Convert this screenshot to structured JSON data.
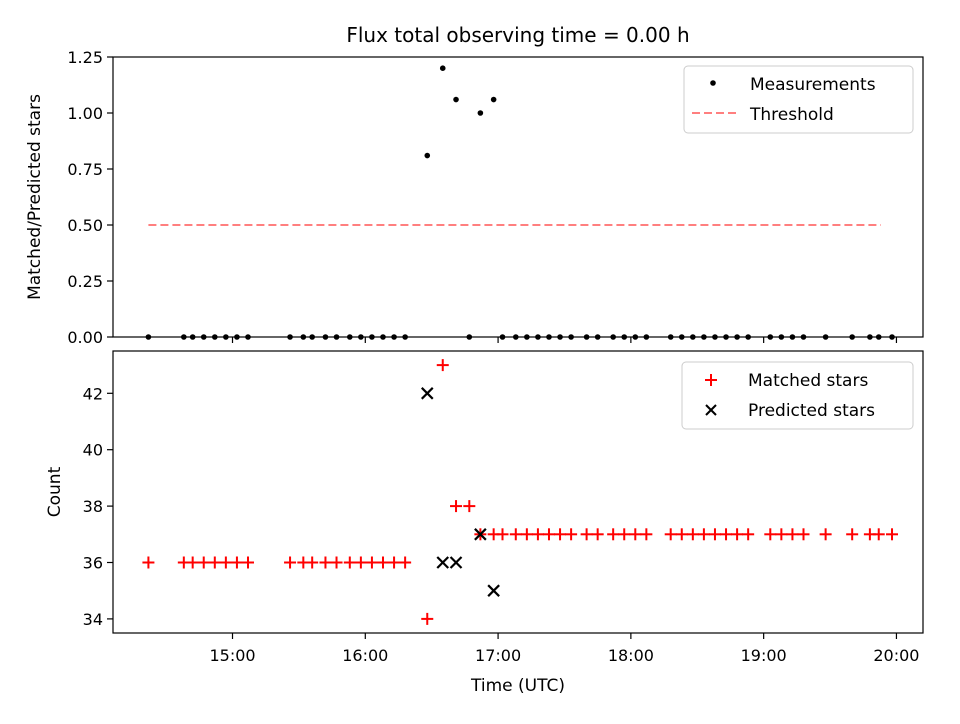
{
  "title": "Flux total observing time = 0.00 h",
  "chart_data": [
    {
      "type": "scatter",
      "ylabel": "Matched/Predicted stars",
      "xlim": [
        "14:06",
        "20:12"
      ],
      "ylim": [
        0,
        1.25
      ],
      "yticks": [
        "0.00",
        "0.25",
        "0.50",
        "0.75",
        "1.00",
        "1.25"
      ],
      "legend_position": "top-right",
      "series": [
        {
          "name": "Measurements",
          "color": "#000000",
          "marker": "dot",
          "x": [
            "14:22",
            "14:38",
            "14:42",
            "14:47",
            "14:52",
            "14:57",
            "15:02",
            "15:07",
            "15:26",
            "15:32",
            "15:36",
            "15:42",
            "15:47",
            "15:53",
            "15:58",
            "16:03",
            "16:08",
            "16:13",
            "16:18",
            "16:28",
            "16:35",
            "16:41",
            "16:47",
            "16:52",
            "16:58",
            "17:02",
            "17:08",
            "17:13",
            "17:18",
            "17:23",
            "17:28",
            "17:33",
            "17:40",
            "17:45",
            "17:52",
            "17:57",
            "18:02",
            "18:07",
            "18:18",
            "18:23",
            "18:28",
            "18:33",
            "18:38",
            "18:43",
            "18:48",
            "18:53",
            "19:03",
            "19:08",
            "19:13",
            "19:18",
            "19:28",
            "19:40",
            "19:48",
            "19:52",
            "19:58"
          ],
          "y": [
            0,
            0,
            0,
            0,
            0,
            0,
            0,
            0,
            0,
            0,
            0,
            0,
            0,
            0,
            0,
            0,
            0,
            0,
            0,
            0.81,
            1.2,
            1.06,
            0,
            1.0,
            1.06,
            0,
            0,
            0,
            0,
            0,
            0,
            0,
            0,
            0,
            0,
            0,
            0,
            0,
            0,
            0,
            0,
            0,
            0,
            0,
            0,
            0,
            0,
            0,
            0,
            0,
            0,
            0,
            0,
            0,
            0
          ]
        },
        {
          "name": "Threshold",
          "color": "#ff7f7f",
          "style": "dashed",
          "x": [
            "14:22",
            "19:53"
          ],
          "y": [
            0.5,
            0.5
          ]
        }
      ]
    },
    {
      "type": "scatter",
      "xlabel": "Time (UTC)",
      "ylabel": "Count",
      "xlim": [
        "14:06",
        "20:12"
      ],
      "ylim": [
        33.5,
        43.5
      ],
      "yticks": [
        "34",
        "36",
        "38",
        "40",
        "42"
      ],
      "xticks": [
        "15:00",
        "16:00",
        "17:00",
        "18:00",
        "19:00",
        "20:00"
      ],
      "legend_position": "top-right",
      "series": [
        {
          "name": "Matched stars",
          "color": "#ff0000",
          "marker": "plus",
          "x": [
            "14:22",
            "14:38",
            "14:42",
            "14:47",
            "14:52",
            "14:57",
            "15:02",
            "15:07",
            "15:26",
            "15:32",
            "15:36",
            "15:42",
            "15:47",
            "15:53",
            "15:58",
            "16:03",
            "16:08",
            "16:13",
            "16:18",
            "16:28",
            "16:35",
            "16:41",
            "16:47",
            "16:52",
            "16:58",
            "17:02",
            "17:08",
            "17:13",
            "17:18",
            "17:23",
            "17:28",
            "17:33",
            "17:40",
            "17:45",
            "17:52",
            "17:57",
            "18:02",
            "18:07",
            "18:18",
            "18:23",
            "18:28",
            "18:33",
            "18:38",
            "18:43",
            "18:48",
            "18:53",
            "19:03",
            "19:08",
            "19:13",
            "19:18",
            "19:28",
            "19:40",
            "19:48",
            "19:52",
            "19:58"
          ],
          "y": [
            36,
            36,
            36,
            36,
            36,
            36,
            36,
            36,
            36,
            36,
            36,
            36,
            36,
            36,
            36,
            36,
            36,
            36,
            36,
            34,
            43,
            38,
            38,
            37,
            37,
            37,
            37,
            37,
            37,
            37,
            37,
            37,
            37,
            37,
            37,
            37,
            37,
            37,
            37,
            37,
            37,
            37,
            37,
            37,
            37,
            37,
            37,
            37,
            37,
            37,
            37,
            37,
            37,
            37,
            37
          ]
        },
        {
          "name": "Predicted stars",
          "color": "#000000",
          "marker": "x",
          "x": [
            "16:28",
            "16:35",
            "16:41",
            "16:52",
            "16:58"
          ],
          "y": [
            42,
            36,
            36,
            37,
            35
          ]
        }
      ]
    }
  ]
}
